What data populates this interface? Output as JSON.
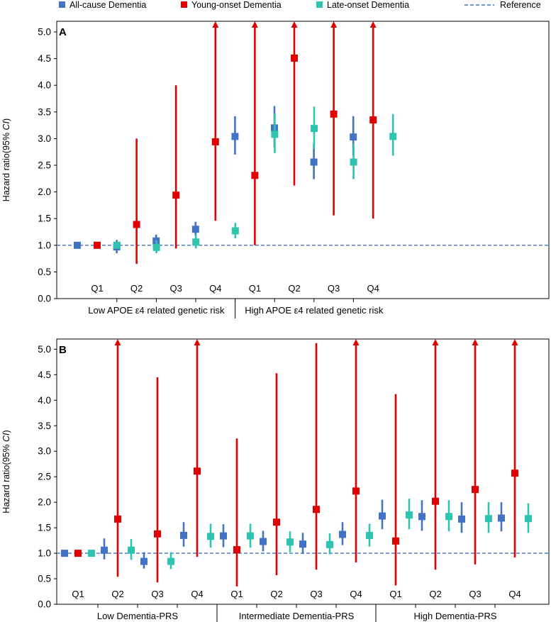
{
  "legend": [
    {
      "name": "All-cause Dementia",
      "color": "#4472C4",
      "marker": "square"
    },
    {
      "name": "Young-onset Dementia",
      "color": "#E00000",
      "marker": "square"
    },
    {
      "name": "Late-onset Dementia",
      "color": "#2EC4B0",
      "marker": "square"
    },
    {
      "name": "Reference",
      "color": "#4472C4",
      "marker": "dashed-line"
    }
  ],
  "colors": {
    "all": "#4472C4",
    "young": "#E00000",
    "late": "#2EC4B0",
    "reference": "#4472C4"
  },
  "chart_data": [
    {
      "type": "scatter",
      "panel": "A",
      "ylabel_prefix": "Hazard ratio(95% ",
      "ylabel_italic": "CI",
      "ylabel_suffix": ")",
      "ylim": [
        0,
        5.2
      ],
      "yticks": [
        "0.0",
        "0.5",
        "1.0",
        "1.5",
        "2.0",
        "2.5",
        "3.0",
        "3.5",
        "4.0",
        "4.5",
        "5.0"
      ],
      "reference": 1.0,
      "categories": [
        "Q1",
        "Q2",
        "Q3",
        "Q4",
        "Q1",
        "Q2",
        "Q3",
        "Q4"
      ],
      "groups": [
        "Low APOE ε4 related genetic risk",
        "High APOE ε4 related genetic risk"
      ],
      "groups_size": [
        4,
        4
      ],
      "series": [
        {
          "name": "All-cause Dementia",
          "key": "all",
          "values": [
            1.0,
            0.97,
            1.08,
            1.3,
            3.04,
            3.2,
            2.56,
            3.03
          ],
          "lower": [
            1.0,
            0.85,
            0.96,
            1.17,
            2.7,
            2.83,
            2.24,
            2.68
          ],
          "upper": [
            1.0,
            1.1,
            1.2,
            1.44,
            3.42,
            3.61,
            2.91,
            3.42
          ]
        },
        {
          "name": "Young-onset Dementia",
          "key": "young",
          "values": [
            1.0,
            1.39,
            1.94,
            2.94,
            2.31,
            4.51,
            3.46,
            3.35
          ],
          "lower": [
            1.0,
            0.65,
            0.94,
            1.46,
            1.0,
            2.12,
            1.56,
            1.5
          ],
          "upper": [
            1.0,
            3.0,
            4.0,
            5.2,
            5.2,
            5.2,
            5.2,
            5.2
          ],
          "upper_arrow": [
            false,
            false,
            false,
            true,
            true,
            true,
            true,
            true
          ]
        },
        {
          "name": "Late-onset Dementia",
          "key": "late",
          "values": [
            1.0,
            0.96,
            1.06,
            1.27,
            3.08,
            3.19,
            2.56,
            3.04
          ],
          "lower": [
            1.0,
            0.85,
            0.94,
            1.13,
            2.73,
            2.81,
            2.24,
            2.68
          ],
          "upper": [
            1.0,
            1.09,
            1.2,
            1.42,
            3.47,
            3.6,
            2.91,
            3.46
          ]
        }
      ]
    },
    {
      "type": "scatter",
      "panel": "B",
      "ylabel_prefix": "Hazard ratio(95% ",
      "ylabel_italic": "CI",
      "ylabel_suffix": ")",
      "ylim": [
        0,
        5.2
      ],
      "yticks": [
        "0.0",
        "0.5",
        "1.0",
        "1.5",
        "2.0",
        "2.5",
        "3.0",
        "3.5",
        "4.0",
        "4.5",
        "5.0"
      ],
      "reference": 1.0,
      "categories": [
        "Q1",
        "Q2",
        "Q3",
        "Q4",
        "Q1",
        "Q2",
        "Q3",
        "Q4",
        "Q1",
        "Q2",
        "Q3",
        "Q4"
      ],
      "groups": [
        "Low Dementia-PRS",
        "Intermediate Dementia-PRS",
        "High Dementia-PRS"
      ],
      "groups_size": [
        4,
        4,
        4
      ],
      "series": [
        {
          "name": "All-cause Dementia",
          "key": "all",
          "values": [
            1.0,
            1.06,
            0.84,
            1.35,
            1.34,
            1.23,
            1.18,
            1.37,
            1.73,
            1.72,
            1.67,
            1.69
          ],
          "lower": [
            1.0,
            0.88,
            0.7,
            1.13,
            1.12,
            1.04,
            0.99,
            1.16,
            1.47,
            1.44,
            1.4,
            1.43
          ],
          "upper": [
            1.0,
            1.29,
            1.02,
            1.61,
            1.57,
            1.44,
            1.4,
            1.61,
            2.05,
            2.04,
            2.0,
            2.0
          ]
        },
        {
          "name": "Young-onset Dementia",
          "key": "young",
          "values": [
            1.0,
            1.67,
            1.38,
            2.61,
            1.07,
            1.61,
            1.86,
            2.22,
            1.24,
            2.02,
            2.25,
            2.57
          ],
          "lower": [
            1.0,
            0.54,
            0.43,
            0.93,
            0.35,
            0.57,
            0.68,
            0.82,
            0.37,
            0.68,
            0.78,
            0.92
          ],
          "upper": [
            1.0,
            5.2,
            4.45,
            5.2,
            3.25,
            4.53,
            5.12,
            5.2,
            4.12,
            5.2,
            5.2,
            5.2
          ],
          "upper_arrow": [
            false,
            true,
            false,
            true,
            false,
            false,
            false,
            true,
            false,
            true,
            true,
            true
          ]
        },
        {
          "name": "Late-onset Dementia",
          "key": "late",
          "values": [
            1.0,
            1.06,
            0.84,
            1.33,
            1.34,
            1.22,
            1.17,
            1.35,
            1.75,
            1.72,
            1.68,
            1.68
          ],
          "lower": [
            1.0,
            0.87,
            0.69,
            1.11,
            1.11,
            1.02,
            0.98,
            1.13,
            1.47,
            1.43,
            1.4,
            1.4
          ],
          "upper": [
            1.0,
            1.28,
            1.02,
            1.58,
            1.58,
            1.43,
            1.39,
            1.58,
            2.07,
            2.04,
            2.0,
            1.98
          ]
        }
      ]
    }
  ]
}
